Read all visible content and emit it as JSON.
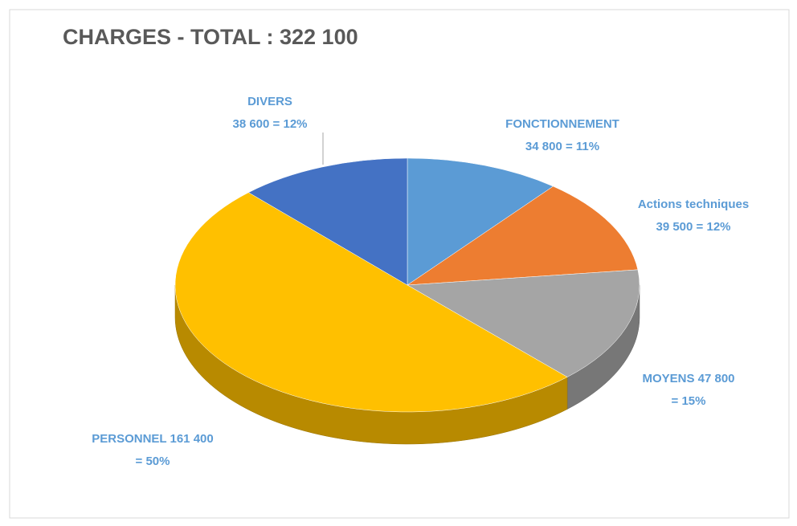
{
  "chart_data": {
    "type": "pie",
    "title": "CHARGES - TOTAL : 322 100",
    "categories": [
      "FONCTIONNEMENT",
      "Actions techniques",
      "MOYENS",
      "PERSONNEL",
      "DIVERS"
    ],
    "values": [
      34800,
      39500,
      47800,
      161400,
      38600
    ],
    "value_labels": [
      "34 800",
      "39 500",
      "47 800",
      "161 400",
      "38 600"
    ],
    "percentages": [
      11,
      12,
      15,
      50,
      12
    ],
    "percentage_labels": [
      "=  11%",
      "= 12%",
      "= 15%",
      "= 50%",
      "=  12%"
    ],
    "colors": [
      "#5b9bd5",
      "#ed7d31",
      "#a5a5a5",
      "#ffc000",
      "#4472c4"
    ]
  }
}
